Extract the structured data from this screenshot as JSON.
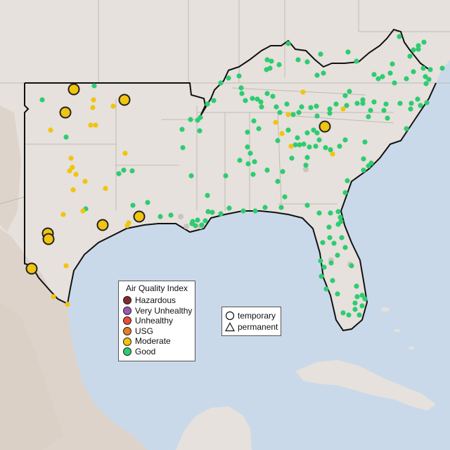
{
  "map": {
    "colors": {
      "ocean": "#c9d9ea",
      "land": "#e6e1dc",
      "mountains": "#d8cec4",
      "state_borders": "#c0bab4",
      "region_border": "#111111",
      "marker_outline": "#222222"
    }
  },
  "aqi_legend": {
    "title": "Air Quality Index",
    "items": [
      {
        "label": "Hazardous",
        "color": "#7e2d2d"
      },
      {
        "label": "Very Unhealthy",
        "color": "#9b59b6"
      },
      {
        "label": "Unhealthy",
        "color": "#e74c3c"
      },
      {
        "label": "USG",
        "color": "#e67e22"
      },
      {
        "label": "Moderate",
        "color": "#f1c40f"
      },
      {
        "label": "Good",
        "color": "#2ecc71"
      }
    ]
  },
  "shape_legend": {
    "items": [
      {
        "label": "temporary",
        "icon": "circle-icon"
      },
      {
        "label": "permanent",
        "icon": "triangle-icon"
      }
    ]
  }
}
